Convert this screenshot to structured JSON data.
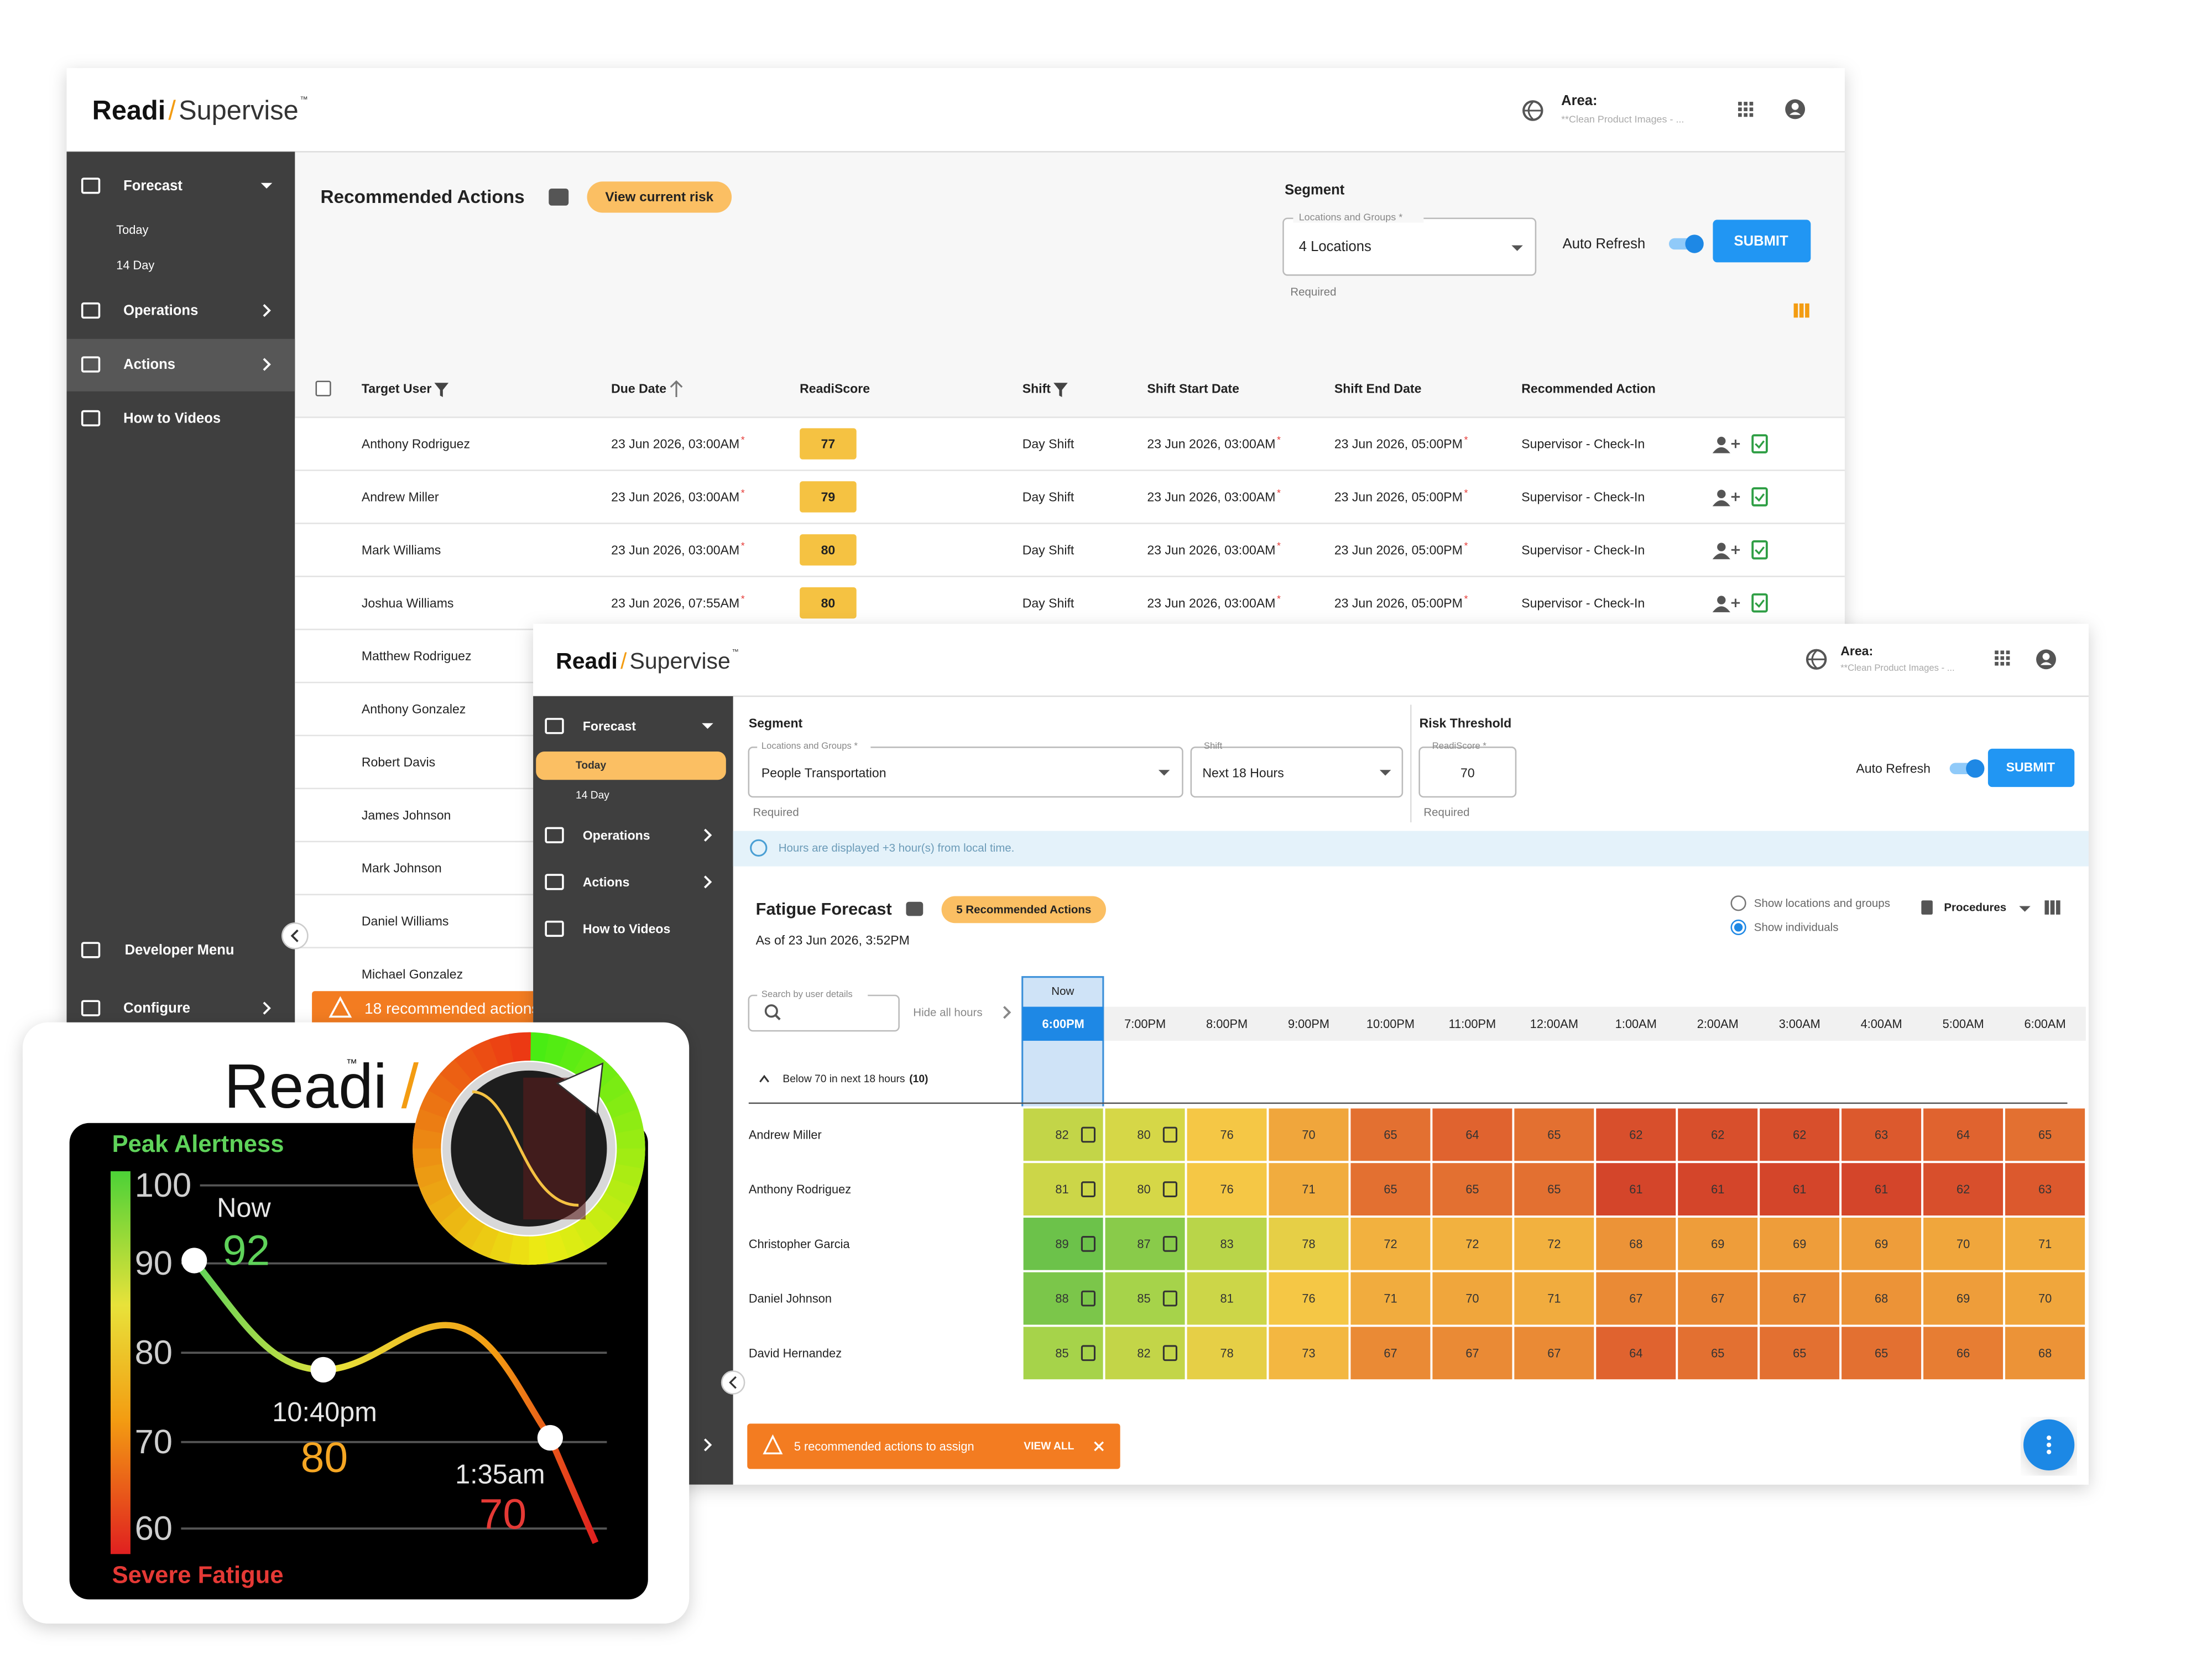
{
  "back_window": {
    "brand": {
      "name": "Readi",
      "slash": "/",
      "product": "Supervise",
      "tm": "™"
    },
    "area": {
      "label": "Area:",
      "value": "**Clean Product Images - ..."
    },
    "nav": {
      "forecast": "Forecast",
      "today": "Today",
      "day14": "14 Day",
      "operations": "Operations",
      "actions": "Actions",
      "videos": "How to Videos",
      "developer": "Developer Menu",
      "configure": "Configure"
    },
    "title": "Recommended Actions",
    "risk_button": "View current risk",
    "segment": {
      "heading": "Segment",
      "label": "Locations and Groups *",
      "value": "4 Locations",
      "helper": "Required"
    },
    "auto_refresh": "Auto Refresh",
    "submit": "SUBMIT",
    "table": {
      "columns": [
        "Target User",
        "Due Date",
        "ReadiScore",
        "Shift",
        "Shift Start Date",
        "Shift End Date",
        "Recommended Action"
      ],
      "date_mark": "*",
      "rows": [
        [
          "Anthony Rodriguez",
          "23 Jun 2026, 03:00AM",
          77,
          "Day Shift",
          "23 Jun 2026, 03:00AM",
          "23 Jun 2026, 05:00PM",
          "Supervisor - Check-In"
        ],
        [
          "Andrew Miller",
          "23 Jun 2026, 03:00AM",
          79,
          "Day Shift",
          "23 Jun 2026, 03:00AM",
          "23 Jun 2026, 05:00PM",
          "Supervisor - Check-In"
        ],
        [
          "Mark Williams",
          "23 Jun 2026, 03:00AM",
          80,
          "Day Shift",
          "23 Jun 2026, 03:00AM",
          "23 Jun 2026, 05:00PM",
          "Supervisor - Check-In"
        ],
        [
          "Joshua Williams",
          "23 Jun 2026, 07:55AM",
          80,
          "Day Shift",
          "23 Jun 2026, 03:00AM",
          "23 Jun 2026, 05:00PM",
          "Supervisor - Check-In"
        ],
        [
          "Matthew Rodriguez"
        ],
        [
          "Anthony Gonzalez"
        ],
        [
          "Robert Davis"
        ],
        [
          "James Johnson"
        ],
        [
          "Mark Johnson"
        ],
        [
          "Daniel Williams"
        ],
        [
          "Michael Gonzalez"
        ]
      ]
    },
    "banner": "18 recommended actions"
  },
  "front_window": {
    "brand": {
      "name": "Readi",
      "slash": "/",
      "product": "Supervise",
      "tm": "™"
    },
    "area": {
      "label": "Area:",
      "value": "**Clean Product Images - ..."
    },
    "nav": {
      "forecast": "Forecast",
      "today": "Today",
      "day14": "14 Day",
      "operations": "Operations",
      "actions": "Actions",
      "videos": "How to Videos"
    },
    "segment": {
      "heading": "Segment",
      "locations_label": "Locations and Groups *",
      "locations_value": "People Transportation",
      "locations_helper": "Required",
      "shift_label": "Shift",
      "shift_value": "Next 18 Hours"
    },
    "risk": {
      "heading": "Risk Threshold",
      "label": "ReadiScore *",
      "value": 70,
      "helper": "Required"
    },
    "auto_refresh": "Auto Refresh",
    "submit": "SUBMIT",
    "info": "Hours are displayed +3 hour(s) from local time.",
    "forecast": {
      "title": "Fatigue Forecast",
      "recommended": "5 Recommended Actions",
      "as_of": "As of 23 Jun 2026, 3:52PM",
      "view_options": [
        "Show locations and groups",
        "Show individuals"
      ],
      "procedures": "Procedures",
      "search_label": "Search by user details",
      "hide_hours": "Hide all hours",
      "now": "Now",
      "hours": [
        "6:00PM",
        "7:00PM",
        "8:00PM",
        "9:00PM",
        "10:00PM",
        "11:00PM",
        "12:00AM",
        "1:00AM",
        "2:00AM",
        "3:00AM",
        "4:00AM",
        "5:00AM",
        "6:00AM"
      ],
      "group": {
        "label": "Below 70 in next 18 hours",
        "count": "(10)"
      },
      "rows": [
        {
          "name": "Andrew Miller",
          "values": [
            82,
            80,
            76,
            70,
            65,
            64,
            65,
            62,
            62,
            62,
            63,
            64,
            65
          ]
        },
        {
          "name": "Anthony Rodriguez",
          "values": [
            81,
            80,
            76,
            71,
            65,
            65,
            65,
            61,
            61,
            61,
            61,
            62,
            63
          ]
        },
        {
          "name": "Christopher Garcia",
          "values": [
            89,
            87,
            83,
            78,
            72,
            72,
            72,
            68,
            69,
            69,
            69,
            70,
            71
          ]
        },
        {
          "name": "Daniel Johnson",
          "values": [
            88,
            85,
            81,
            76,
            71,
            70,
            71,
            67,
            67,
            67,
            68,
            69,
            70
          ]
        },
        {
          "name": "David Hernandez",
          "values": [
            85,
            82,
            78,
            73,
            67,
            67,
            67,
            64,
            65,
            65,
            65,
            66,
            68
          ]
        }
      ]
    },
    "banner": {
      "text": "5 recommended actions to assign",
      "action": "VIEW ALL"
    }
  },
  "inset": {
    "brand": "Readi",
    "tm": "™",
    "slash": "/",
    "top": "Peak Alertness",
    "bottom": "Severe Fatigue",
    "scale": [
      100,
      90,
      80,
      70,
      60
    ],
    "points": [
      {
        "label": "Now",
        "value": 92
      },
      {
        "label": "10:40pm",
        "value": 80
      },
      {
        "label": "1:35am",
        "value": 70
      }
    ]
  }
}
